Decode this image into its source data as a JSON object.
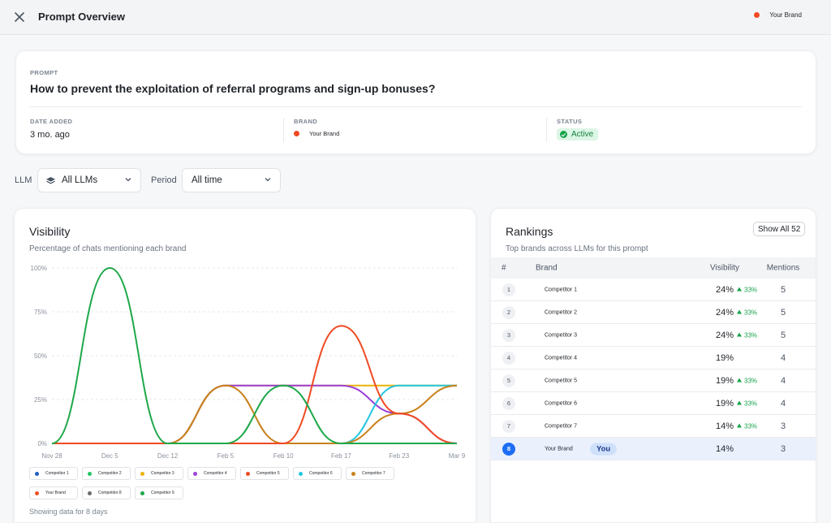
{
  "header": {
    "title": "Prompt Overview",
    "brand_name": "Your Brand",
    "brand_color": "#f04a23"
  },
  "prompt": {
    "label": "PROMPT",
    "text": "How to prevent the exploitation of referral programs and sign-up bonuses?",
    "date_label": "DATE ADDED",
    "date_value": "3 mo. ago",
    "brand_label": "BRAND",
    "brand_value": "Your Brand",
    "status_label": "STATUS",
    "status_value": "Active"
  },
  "filters": {
    "llm_label": "LLM",
    "llm_value": "All LLMs",
    "period_label": "Period",
    "period_value": "All time"
  },
  "visibility": {
    "title": "Visibility",
    "subtitle": "Percentage of chats mentioning each brand",
    "footnote": "Showing data for 8 days"
  },
  "chart_data": {
    "type": "line",
    "x": [
      "Nov 28",
      "Dec 5",
      "Dec 12",
      "Feb 5",
      "Feb 10",
      "Feb 17",
      "Feb 23",
      "Mar 9"
    ],
    "y_ticks": [
      "0%",
      "25%",
      "50%",
      "75%",
      "100%"
    ],
    "ylim": [
      0,
      100
    ],
    "grid": true,
    "legend_position": "bottom",
    "series": [
      {
        "name": "Competitor 1",
        "color": "#1f5fbf",
        "values": [
          0,
          0,
          0,
          0,
          0,
          0,
          0,
          0
        ]
      },
      {
        "name": "Competitor 2",
        "color": "#22c55e",
        "values": [
          0,
          0,
          0,
          0,
          0,
          0,
          0,
          0
        ]
      },
      {
        "name": "Competitor 3",
        "color": "#eab308",
        "values": [
          0,
          0,
          0,
          33,
          33,
          33,
          33,
          33
        ]
      },
      {
        "name": "Competitor 4",
        "color": "#9b3fd9",
        "values": [
          0,
          0,
          0,
          33,
          33,
          33,
          17,
          0
        ]
      },
      {
        "name": "Competitor 5",
        "color": "#f04a23",
        "values": [
          0,
          0,
          0,
          0,
          0,
          67,
          17,
          0
        ]
      },
      {
        "name": "Competitor 6",
        "color": "#22c7e0",
        "values": [
          0,
          0,
          0,
          0,
          0,
          0,
          33,
          33
        ]
      },
      {
        "name": "Competitor 7",
        "color": "#c8811a",
        "values": [
          0,
          0,
          0,
          33,
          0,
          0,
          17,
          33
        ]
      },
      {
        "name": "Your Brand",
        "color": "#ef4f23",
        "values": [
          0,
          0,
          0,
          0,
          0,
          0,
          0,
          0
        ]
      },
      {
        "name": "Competitor 8",
        "color": "#6b6b6b",
        "values": [
          0,
          0,
          0,
          0,
          0,
          0,
          0,
          0
        ]
      },
      {
        "name": "Competitor 9",
        "color": "#1ea84a",
        "values": [
          0,
          100,
          0,
          0,
          33,
          0,
          0,
          0
        ]
      }
    ]
  },
  "rankings": {
    "title": "Rankings",
    "subtitle": "Top brands across LLMs for this prompt",
    "show_all": "Show All 52",
    "columns": [
      "#",
      "Brand",
      "Visibility",
      "Mentions"
    ],
    "you_label": "You",
    "rows": [
      {
        "rank": "1",
        "brand": "Competitor 1",
        "visibility": "24%",
        "delta": "33%",
        "mentions": "5"
      },
      {
        "rank": "2",
        "brand": "Competitor 2",
        "visibility": "24%",
        "delta": "33%",
        "mentions": "5"
      },
      {
        "rank": "3",
        "brand": "Competitor 3",
        "visibility": "24%",
        "delta": "33%",
        "mentions": "5"
      },
      {
        "rank": "4",
        "brand": "Competitor 4",
        "visibility": "19%",
        "delta": "",
        "mentions": "4"
      },
      {
        "rank": "5",
        "brand": "Competitor 5",
        "visibility": "19%",
        "delta": "33%",
        "mentions": "4"
      },
      {
        "rank": "6",
        "brand": "Competitor 6",
        "visibility": "19%",
        "delta": "33%",
        "mentions": "4"
      },
      {
        "rank": "7",
        "brand": "Competitor 7",
        "visibility": "14%",
        "delta": "33%",
        "mentions": "3"
      },
      {
        "rank": "8",
        "brand": "Your Brand",
        "visibility": "14%",
        "delta": "",
        "mentions": "3",
        "is_you": true
      }
    ]
  }
}
